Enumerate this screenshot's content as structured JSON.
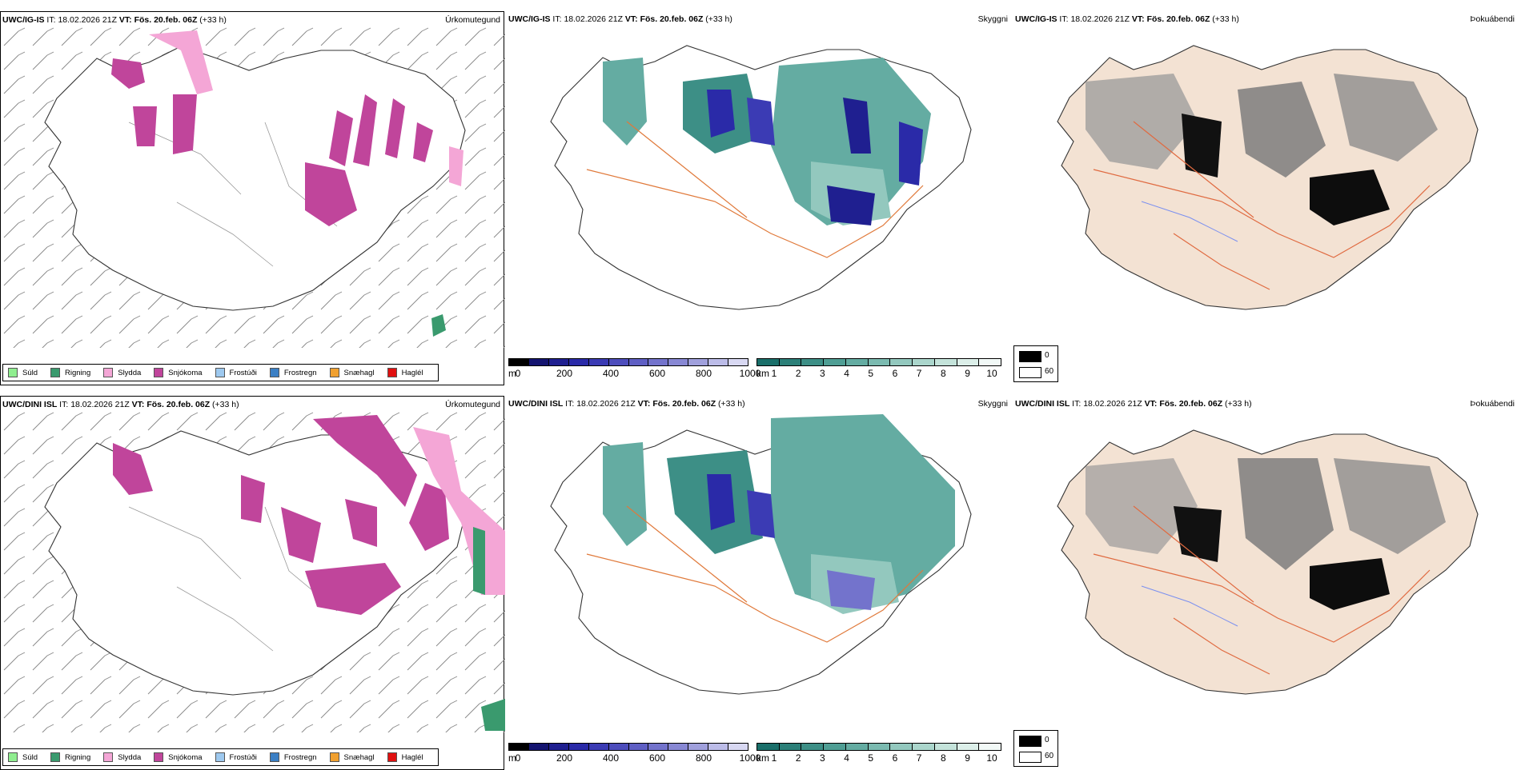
{
  "panels": [
    {
      "model": "UWC/IG-IS",
      "it_label": "IT:",
      "it_value": "18.02.2026 21Z",
      "vt_label": "VT:",
      "vt_value": "Fös. 20.feb. 06Z",
      "lead": "(+33 h)",
      "titles": [
        "Úrkomutegund",
        "Skyggni",
        "Þokuábendi"
      ]
    },
    {
      "model": "UWC/DINI ISL",
      "it_label": "IT:",
      "it_value": "18.02.2026 21Z",
      "vt_label": "VT:",
      "vt_value": "Fös. 20.feb. 06Z",
      "lead": "(+33 h)",
      "titles": [
        "Úrkomutegund",
        "Skyggni",
        "Þokuábendi"
      ]
    }
  ],
  "precip_legend": [
    {
      "label": "Súld",
      "color": "#90ee90"
    },
    {
      "label": "Rigning",
      "color": "#3a9a6e"
    },
    {
      "label": "Slydda",
      "color": "#f4a6d6"
    },
    {
      "label": "Snjókoma",
      "color": "#c0459b"
    },
    {
      "label": "Frostúði",
      "color": "#9ec9ef"
    },
    {
      "label": "Frostregn",
      "color": "#3b7fc4"
    },
    {
      "label": "Snæhagl",
      "color": "#f0a030"
    },
    {
      "label": "Haglél",
      "color": "#e01010"
    }
  ],
  "height_legend": {
    "unit": "m",
    "ticks": [
      "0",
      "200",
      "400",
      "600",
      "800",
      "1000"
    ],
    "colors": [
      "#000000",
      "#141470",
      "#1f1f90",
      "#2a2aa8",
      "#3b3bb4",
      "#4d4dbc",
      "#5f5fc4",
      "#7373cc",
      "#8888d4",
      "#a0a0dc",
      "#bcbce8",
      "#d8d8f2"
    ]
  },
  "vis_legend": {
    "unit": "km",
    "ticks": [
      "1",
      "2",
      "3",
      "4",
      "5",
      "6",
      "7",
      "8",
      "9",
      "10"
    ],
    "colors": [
      "#1a6f6a",
      "#2b7f78",
      "#3d8f86",
      "#4f9e94",
      "#64aca2",
      "#7bbab0",
      "#93c8be",
      "#abd6cc",
      "#c4e3da",
      "#dcefe9",
      "#f2f9f7"
    ]
  },
  "fog_legend": {
    "high": "0",
    "low": "60"
  },
  "colors": {
    "snow": "#c0459b",
    "sleet": "#f4a6d6",
    "rain": "#3a9a6e",
    "land": "#f3e2d3",
    "roads": "#e0793a",
    "vis_high": "#3d8f86",
    "cloud_low": "#2a2aa8"
  }
}
